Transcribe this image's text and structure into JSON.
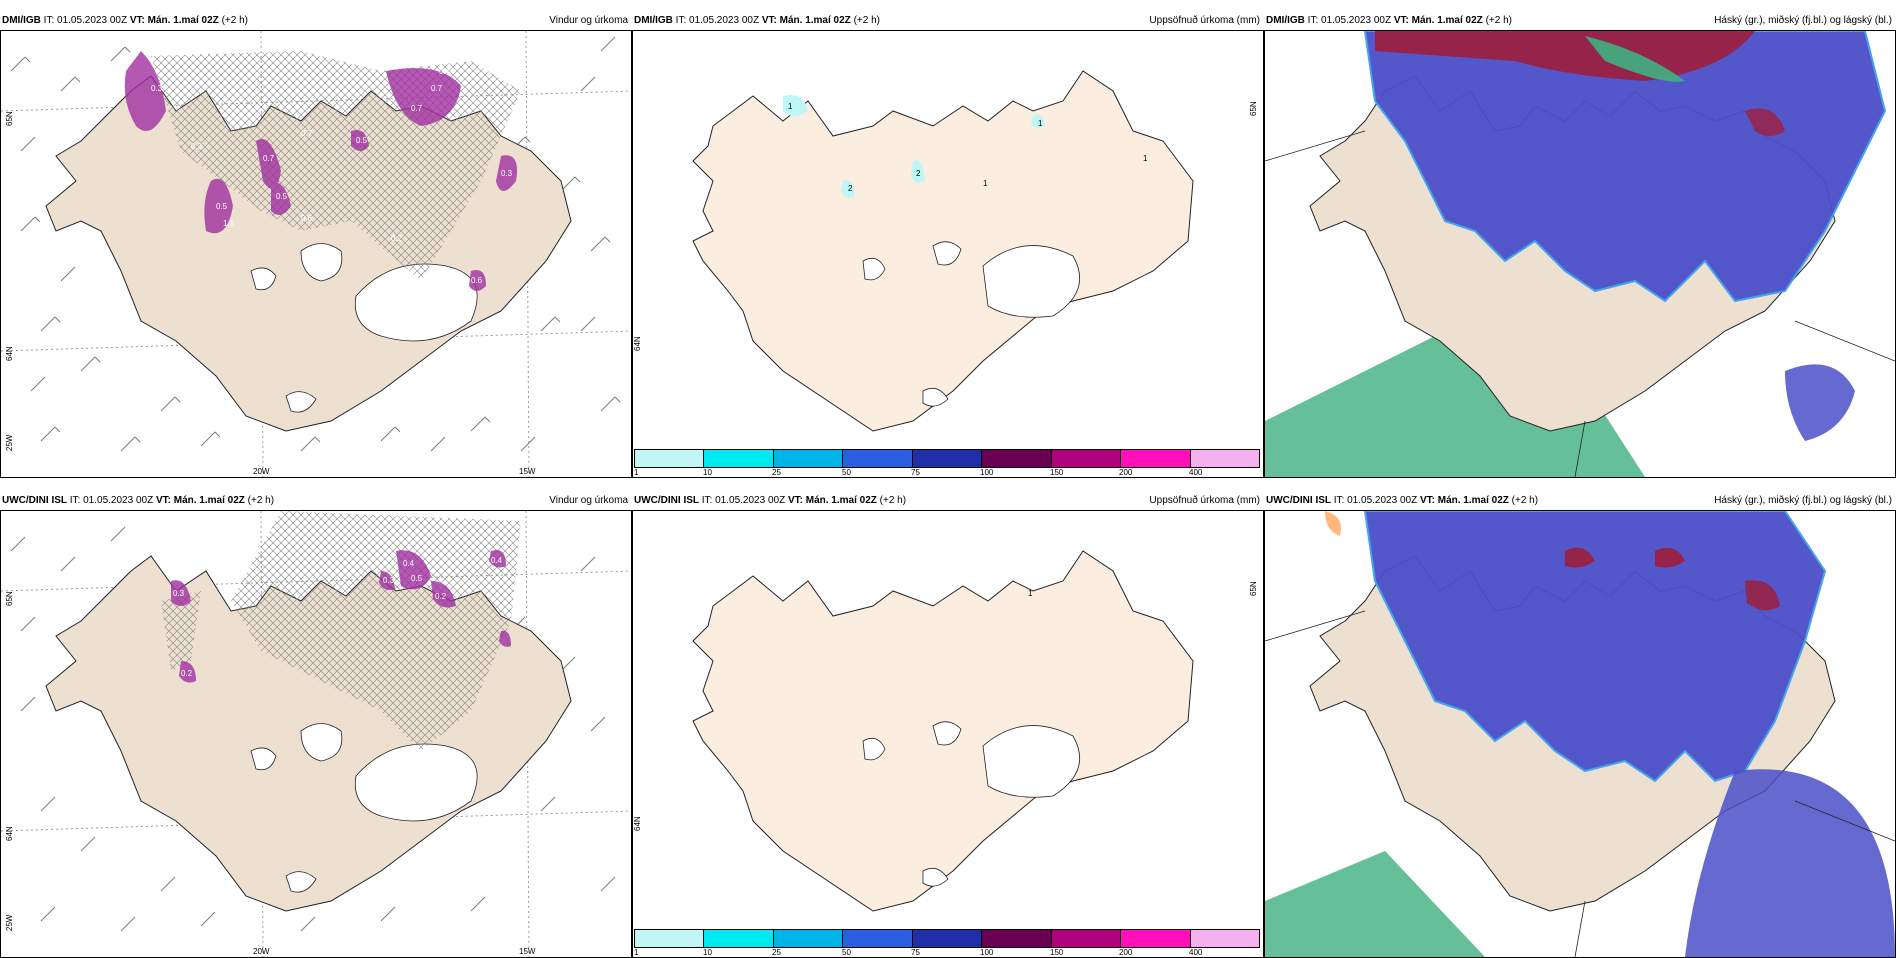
{
  "rows": [
    {
      "model_label": "DMI/IGB",
      "init_prefix": "IT: 01.05.2023 00Z",
      "valid_bold": "VT: Mán. 1.maí 02Z",
      "lead": "(+2 h)",
      "panels": {
        "wind": {
          "title": "Vindur og úrkoma",
          "axis_lat_labels": [
            "65N",
            "64N",
            "63N"
          ],
          "axis_lon_labels": [
            "20W",
            "15W",
            "25W"
          ],
          "precip_value_labels": [
            "0.3",
            "0.7",
            "0.4",
            "0.5",
            "0.7",
            "1.1",
            "0.3",
            "0.5",
            "0.7",
            "0.6",
            "0.5",
            "0.3",
            "0.2",
            "0.7",
            "0.6"
          ]
        },
        "accum": {
          "title": "Uppsöfnuð úrkoma (mm)",
          "axis_lat_labels": [
            "65N",
            "64N"
          ],
          "contour_labels": [
            "1",
            "2",
            "2",
            "1",
            "1",
            "1"
          ]
        },
        "cloud": {
          "title": "Háský (gr.), miðský (fj.bl.) og lágský (bl.)"
        }
      }
    },
    {
      "model_label": "UWC/DINI ISL",
      "init_prefix": "IT: 01.05.2023 00Z",
      "valid_bold": "VT: Mán. 1.maí 02Z",
      "lead": "(+2 h)",
      "panels": {
        "wind": {
          "title": "Vindur og úrkoma",
          "axis_lat_labels": [
            "65N",
            "64N",
            "63N"
          ],
          "axis_lon_labels": [
            "20W",
            "15W",
            "25W"
          ],
          "precip_value_labels": [
            "0.3",
            "0.4",
            "0.2",
            "0.5",
            "0.3",
            "0.2",
            "0.4"
          ]
        },
        "accum": {
          "title": "Uppsöfnuð úrkoma (mm)",
          "axis_lat_labels": [
            "65N",
            "64N"
          ],
          "contour_labels": [
            "1"
          ]
        },
        "cloud": {
          "title": "Háský (gr.), miðský (fj.bl.) og lágský (bl.)"
        }
      }
    }
  ],
  "legend": {
    "ticks": [
      "1",
      "10",
      "25",
      "50",
      "75",
      "100",
      "150",
      "200",
      "400"
    ],
    "colors": [
      "#bff7f7",
      "#00e8f0",
      "#00b4e8",
      "#2b5fe0",
      "#1f2fa8",
      "#6a0052",
      "#b0007e",
      "#ff10b8",
      "#f5b0f0"
    ]
  },
  "colors": {
    "land_wind": "#ede0d0",
    "land_accum": "#fbeee0",
    "land_cloud": "#ede0d0",
    "cloud_low": "#4b4fc8",
    "cloud_low_edge": "#3aa0f0",
    "cloud_high": "#9d1f3c",
    "cloud_mid": "#3fb07f",
    "precip": "#a030a0"
  }
}
